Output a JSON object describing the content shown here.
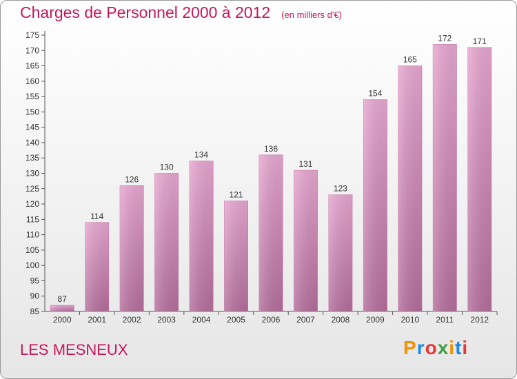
{
  "header": {
    "title": "Charges de Personnel 2000 à 2012",
    "subtitle": "(en milliers d'€)"
  },
  "footer": {
    "name": "LES MESNEUX"
  },
  "logo": {
    "text": "Proxiti",
    "letters": [
      "P",
      "r",
      "o",
      "x",
      "i",
      "t",
      "i"
    ],
    "colors": [
      "#f39200",
      "#1e88e5",
      "#e53935",
      "#43a047",
      "#f39200",
      "#1e88e5",
      "#e53935"
    ]
  },
  "chart_data": {
    "type": "bar",
    "categories": [
      "2000",
      "2001",
      "2002",
      "2003",
      "2004",
      "2005",
      "2006",
      "2007",
      "2008",
      "2009",
      "2010",
      "2011",
      "2012"
    ],
    "values": [
      87,
      114,
      126,
      130,
      134,
      121,
      136,
      131,
      123,
      154,
      165,
      172,
      171
    ],
    "title": "Charges de Personnel 2000 à 2012",
    "subtitle": "(en milliers d'€)",
    "ylim": [
      85,
      175
    ],
    "yticks": [
      85,
      90,
      95,
      100,
      105,
      110,
      115,
      120,
      125,
      130,
      135,
      140,
      145,
      150,
      155,
      160,
      165,
      170,
      175
    ],
    "grid": false,
    "bar_color": "#d98bbc"
  }
}
